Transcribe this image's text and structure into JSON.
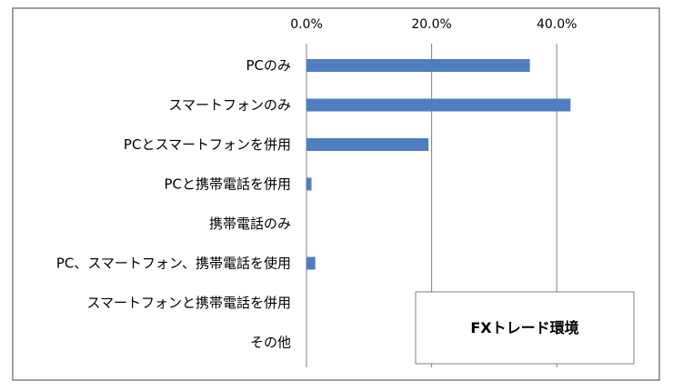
{
  "colors": {
    "bar": "#4F7EC1",
    "gridline": "#808080",
    "frame": "#808080"
  },
  "chart_data": {
    "type": "bar",
    "orientation": "horizontal",
    "title": "FXトレード環境",
    "categories": [
      "PCのみ",
      "スマートフォンのみ",
      "PCとスマートフォンを併用",
      "PCと携帯電話を併用",
      "携帯電話のみ",
      "PC、スマートフォン、携帯電話を使用",
      "スマートフォンと携帯電話を併用",
      "その他"
    ],
    "values": [
      35.7,
      42.2,
      19.5,
      0.8,
      0.0,
      1.4,
      0.0,
      0.0
    ],
    "xlim": [
      0,
      50
    ],
    "xticks": [
      "0.0%",
      "20.0%",
      "40.0%"
    ],
    "xtick_values": [
      0,
      20,
      40
    ],
    "grid": true,
    "legend": "none"
  }
}
